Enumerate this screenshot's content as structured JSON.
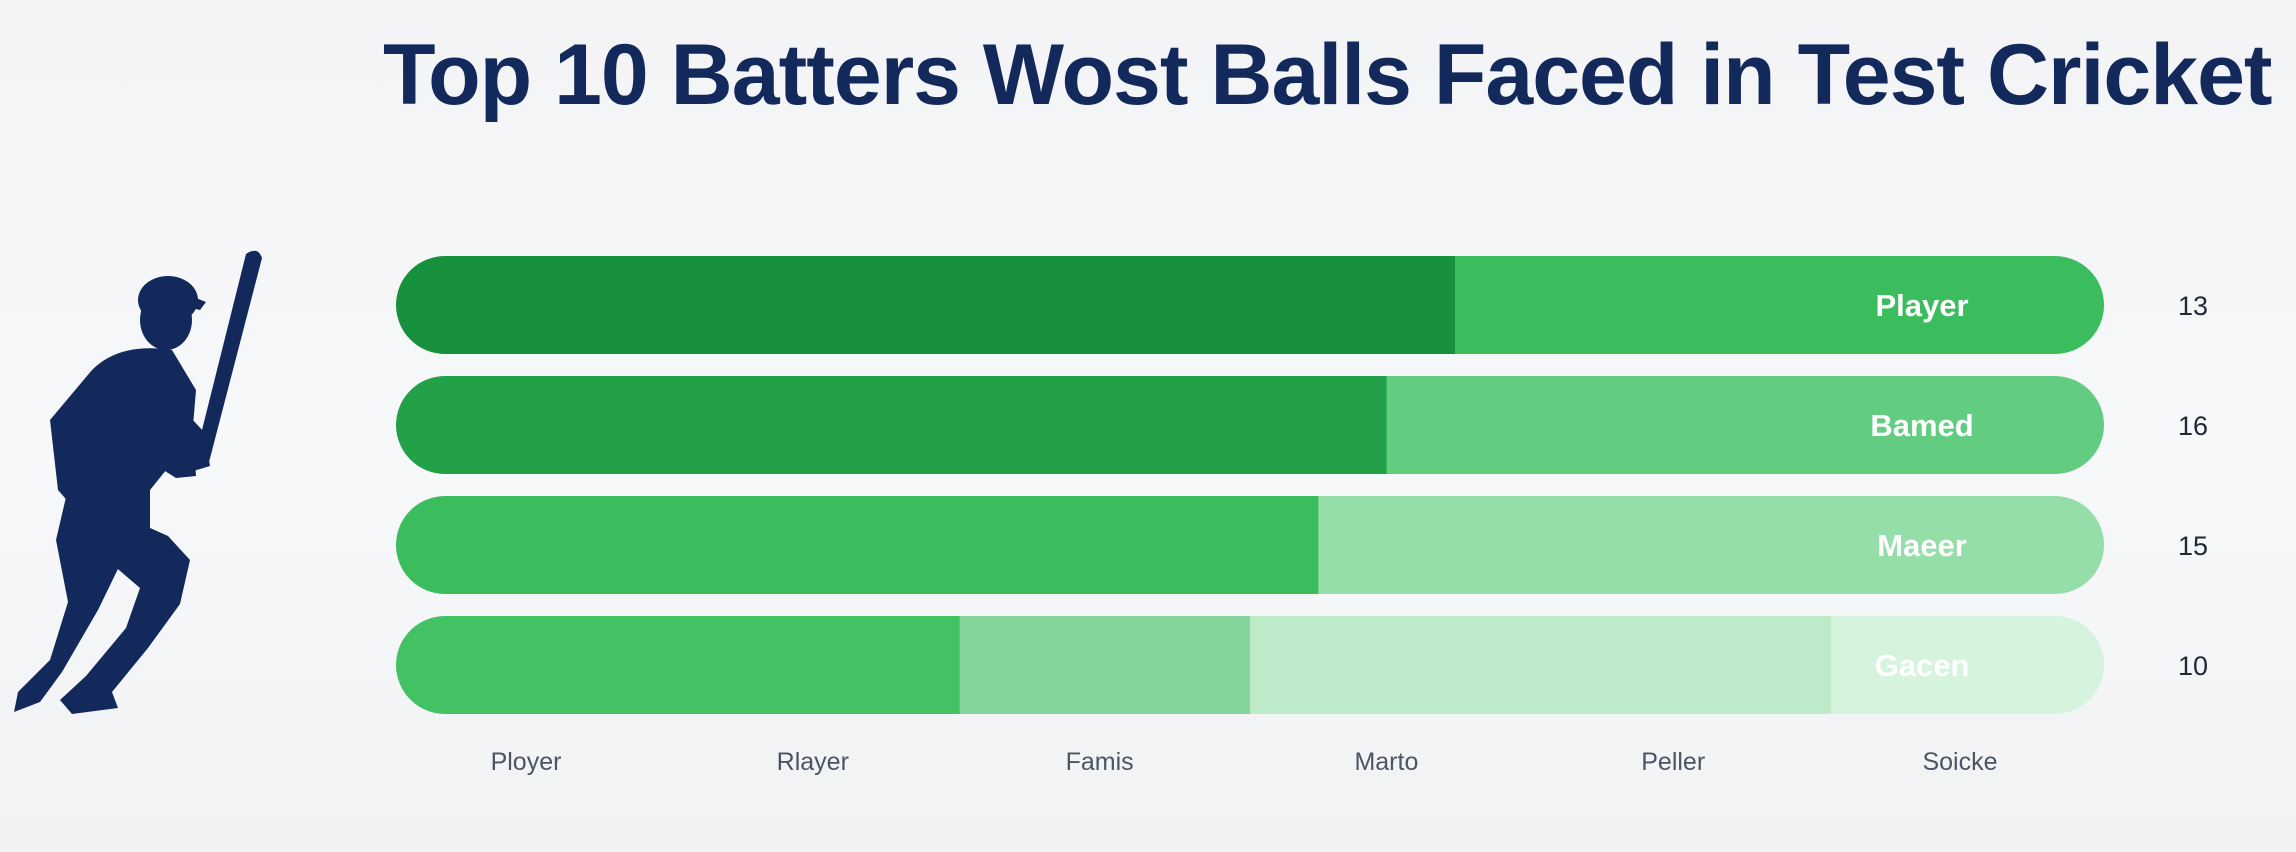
{
  "chart_data": {
    "type": "bar",
    "orientation": "horizontal",
    "stacked": true,
    "title": "Top 10 Batters Wost Balls Faced in Test Cricket",
    "bars": [
      {
        "label": "Player",
        "value": "13",
        "segments": [
          62,
          38
        ],
        "colors": [
          "#18913e",
          "#3bbd5e"
        ],
        "label_color": "#ffffff"
      },
      {
        "label": "Bamed",
        "value": "16",
        "segments": [
          58,
          42
        ],
        "colors": [
          "#23a149",
          "#62cd80"
        ],
        "label_color": "#ffffff"
      },
      {
        "label": "Maeer",
        "value": "15",
        "segments": [
          54,
          46
        ],
        "colors": [
          "#3bbd5e",
          "#96dea9"
        ],
        "label_color": "#ffffff"
      },
      {
        "label": "Gacen",
        "value": "10",
        "segments": [
          33,
          17,
          34,
          16
        ],
        "colors": [
          "#43c264",
          "#84d59b",
          "#bdebc9",
          "#d6f3de"
        ],
        "label_color": "#f4fbf6"
      }
    ],
    "categories": [
      "Ployer",
      "Rlayer",
      "Famis",
      "Marto",
      "Peller",
      "Soicke"
    ],
    "grid": false,
    "legend": false
  },
  "decoration": {
    "icon": "cricket-batter-icon",
    "icon_color": "#13295b"
  }
}
